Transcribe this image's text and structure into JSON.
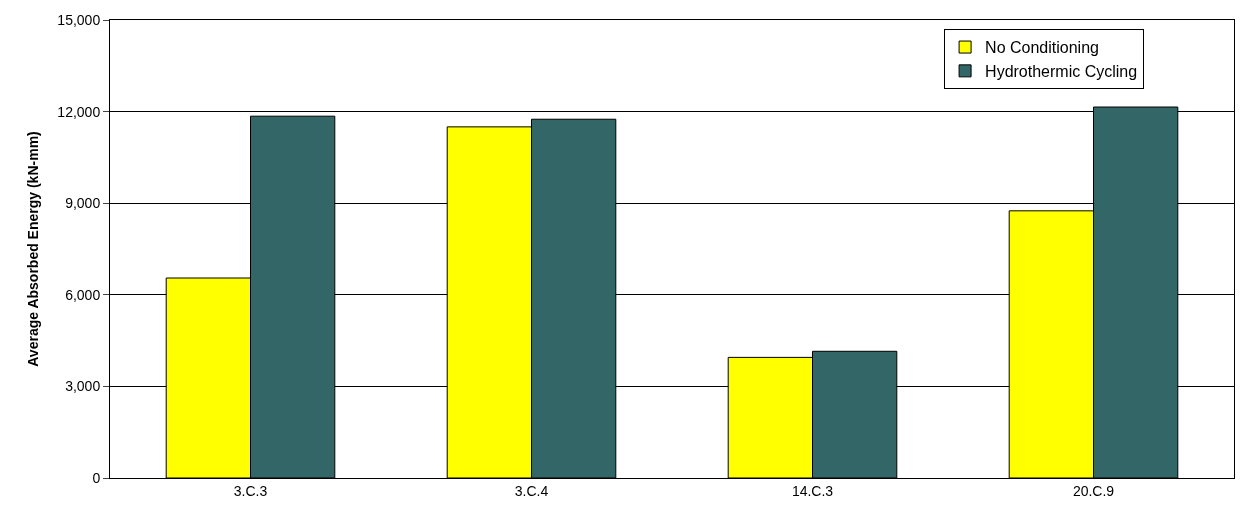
{
  "chart_data": {
    "type": "bar",
    "ylabel": "Average Absorbed Energy (kN-mm)",
    "categories": [
      "3.C.3",
      "3.C.4",
      "14.C.3",
      "20.C.9"
    ],
    "series": [
      {
        "name": "No Conditioning",
        "color": "#ffff00",
        "values": [
          6550,
          11500,
          3950,
          8750
        ]
      },
      {
        "name": "Hydrothermic Cycling",
        "color": "#336666",
        "values": [
          11850,
          11750,
          4150,
          12150
        ]
      }
    ],
    "ylim": [
      0,
      15000
    ],
    "yticks": [
      {
        "value": 0,
        "label": "0"
      },
      {
        "value": 3000,
        "label": "3,000"
      },
      {
        "value": 6000,
        "label": "6,000"
      },
      {
        "value": 9000,
        "label": "9,000"
      },
      {
        "value": 12000,
        "label": "12,000"
      },
      {
        "value": 15000,
        "label": "15,000"
      }
    ],
    "grid": "y",
    "legend": "top right"
  }
}
